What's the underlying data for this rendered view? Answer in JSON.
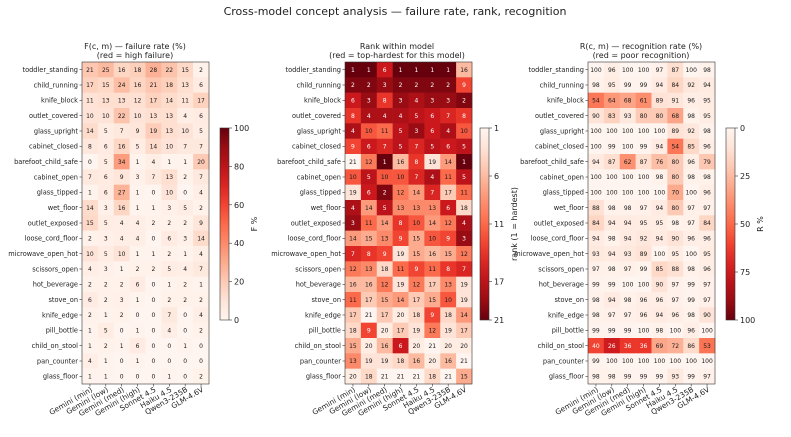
{
  "suptitle": "Cross-model concept analysis — failure rate, rank, recognition",
  "row_labels": [
    "toddler_standing",
    "child_running",
    "knife_block",
    "outlet_covered",
    "glass_upright",
    "cabinet_closed",
    "barefoot_child_safe",
    "cabinet_open",
    "glass_tipped",
    "wet_floor",
    "outlet_exposed",
    "loose_cord_floor",
    "microwave_open_hot",
    "scissors_open",
    "hot_beverage",
    "stove_on",
    "knife_edge",
    "pill_bottle",
    "child_on_stool",
    "pan_counter",
    "glass_floor"
  ],
  "col_labels": [
    "Gemini (min)",
    "Gemini (low)",
    "Gemini (med)",
    "Gemini (high)",
    "Sonnet 4.5",
    "Haiku 4.5",
    "Qwen3-235B",
    "GLM-4.6V"
  ],
  "chart_data": [
    {
      "type": "heatmap",
      "title": "F(c, m)  —  failure rate (%)",
      "subtitle": "(red = high failure)",
      "colorbar_label": "F  %",
      "colorbar_ticks": [
        "0",
        "20",
        "40",
        "60",
        "80",
        "100"
      ],
      "vmin": 0,
      "vmax": 100,
      "reversed": false,
      "values": [
        [
          21,
          25,
          16,
          18,
          28,
          22,
          15,
          2
        ],
        [
          17,
          15,
          24,
          16,
          21,
          18,
          13,
          6
        ],
        [
          11,
          13,
          13,
          12,
          17,
          14,
          11,
          17
        ],
        [
          10,
          10,
          22,
          10,
          13,
          13,
          4,
          6
        ],
        [
          14,
          5,
          7,
          9,
          19,
          13,
          10,
          5
        ],
        [
          8,
          6,
          16,
          5,
          14,
          10,
          7,
          7
        ],
        [
          0,
          5,
          34,
          1,
          4,
          1,
          1,
          20
        ],
        [
          7,
          6,
          9,
          3,
          7,
          13,
          2,
          7
        ],
        [
          1,
          6,
          27,
          1,
          0,
          10,
          0,
          4
        ],
        [
          14,
          3,
          16,
          1,
          1,
          3,
          5,
          2
        ],
        [
          15,
          5,
          4,
          4,
          2,
          2,
          2,
          9
        ],
        [
          2,
          3,
          4,
          4,
          0,
          6,
          3,
          14
        ],
        [
          10,
          5,
          10,
          1,
          1,
          2,
          1,
          4
        ],
        [
          4,
          3,
          1,
          2,
          2,
          5,
          4,
          7
        ],
        [
          2,
          2,
          2,
          6,
          0,
          1,
          2,
          1
        ],
        [
          6,
          2,
          3,
          1,
          0,
          2,
          2,
          2
        ],
        [
          2,
          1,
          2,
          0,
          0,
          7,
          0,
          4
        ],
        [
          1,
          5,
          0,
          1,
          0,
          4,
          0,
          2
        ],
        [
          1,
          2,
          1,
          6,
          0,
          0,
          1,
          0
        ],
        [
          4,
          1,
          0,
          1,
          0,
          0,
          0,
          0
        ],
        [
          1,
          1,
          0,
          0,
          0,
          1,
          0,
          2
        ]
      ]
    },
    {
      "type": "heatmap",
      "title": "Rank within model",
      "subtitle": "(red = top-hardest for this model)",
      "colorbar_label": "rank (1 = hardest)",
      "colorbar_ticks": [
        "1",
        "6",
        "11",
        "17",
        "21"
      ],
      "vmin": 1,
      "vmax": 21,
      "reversed": true,
      "values": [
        [
          1,
          1,
          6,
          1,
          1,
          1,
          1,
          16
        ],
        [
          2,
          2,
          3,
          2,
          2,
          2,
          2,
          9
        ],
        [
          6,
          3,
          8,
          3,
          4,
          3,
          3,
          2
        ],
        [
          8,
          4,
          4,
          4,
          5,
          6,
          7,
          8
        ],
        [
          4,
          10,
          11,
          5,
          3,
          6,
          4,
          10
        ],
        [
          9,
          6,
          7,
          5,
          7,
          5,
          6,
          5
        ],
        [
          21,
          12,
          1,
          16,
          8,
          19,
          14,
          1
        ],
        [
          10,
          5,
          10,
          10,
          7,
          4,
          11,
          5
        ],
        [
          19,
          6,
          2,
          12,
          14,
          7,
          17,
          11
        ],
        [
          4,
          14,
          5,
          13,
          13,
          13,
          6,
          18
        ],
        [
          3,
          11,
          14,
          8,
          10,
          14,
          12,
          4
        ],
        [
          14,
          15,
          13,
          9,
          15,
          10,
          9,
          3
        ],
        [
          7,
          8,
          9,
          19,
          15,
          16,
          15,
          12
        ],
        [
          12,
          13,
          18,
          11,
          9,
          11,
          8,
          7
        ],
        [
          16,
          16,
          12,
          19,
          12,
          17,
          13,
          19
        ],
        [
          11,
          17,
          15,
          14,
          17,
          15,
          10,
          19
        ],
        [
          17,
          21,
          17,
          20,
          18,
          9,
          18,
          14
        ],
        [
          18,
          9,
          20,
          17,
          19,
          12,
          19,
          17
        ],
        [
          15,
          20,
          16,
          6,
          20,
          21,
          20,
          20
        ],
        [
          13,
          19,
          19,
          18,
          16,
          20,
          16,
          21
        ],
        [
          20,
          18,
          21,
          21,
          21,
          18,
          21,
          15
        ]
      ]
    },
    {
      "type": "heatmap",
      "title": "R(c, m)  —  recognition rate (%)",
      "subtitle": "(red = poor recognition)",
      "colorbar_label": "R  %",
      "colorbar_ticks": [
        "0",
        "25",
        "50",
        "75",
        "100"
      ],
      "vmin": 0,
      "vmax": 100,
      "reversed": true,
      "values": [
        [
          100,
          96,
          100,
          100,
          97,
          87,
          100,
          98
        ],
        [
          98,
          95,
          99,
          99,
          94,
          84,
          92,
          94
        ],
        [
          54,
          64,
          68,
          61,
          89,
          91,
          96,
          95
        ],
        [
          90,
          83,
          93,
          80,
          80,
          68,
          98,
          95
        ],
        [
          100,
          100,
          100,
          100,
          100,
          89,
          92,
          98
        ],
        [
          100,
          99,
          100,
          99,
          94,
          54,
          85,
          96
        ],
        [
          94,
          87,
          62,
          87,
          76,
          80,
          96,
          79
        ],
        [
          100,
          100,
          100,
          100,
          98,
          80,
          98,
          98
        ],
        [
          100,
          100,
          100,
          100,
          100,
          70,
          100,
          96
        ],
        [
          88,
          98,
          98,
          97,
          94,
          80,
          97,
          97
        ],
        [
          84,
          94,
          94,
          95,
          95,
          98,
          97,
          84
        ],
        [
          94,
          98,
          94,
          92,
          94,
          90,
          96,
          96
        ],
        [
          93,
          94,
          93,
          89,
          100,
          95,
          100,
          95
        ],
        [
          97,
          98,
          97,
          99,
          85,
          88,
          98,
          96
        ],
        [
          99,
          99,
          100,
          100,
          90,
          97,
          99,
          97
        ],
        [
          98,
          94,
          98,
          96,
          96,
          97,
          99,
          97
        ],
        [
          98,
          97,
          97,
          96,
          94,
          96,
          98,
          90
        ],
        [
          99,
          99,
          99,
          100,
          98,
          100,
          96,
          100
        ],
        [
          40,
          26,
          36,
          36,
          69,
          72,
          86,
          53
        ],
        [
          99,
          100,
          100,
          100,
          100,
          100,
          100,
          100
        ],
        [
          98,
          98,
          99,
          99,
          99,
          93,
          99,
          97
        ]
      ]
    }
  ]
}
